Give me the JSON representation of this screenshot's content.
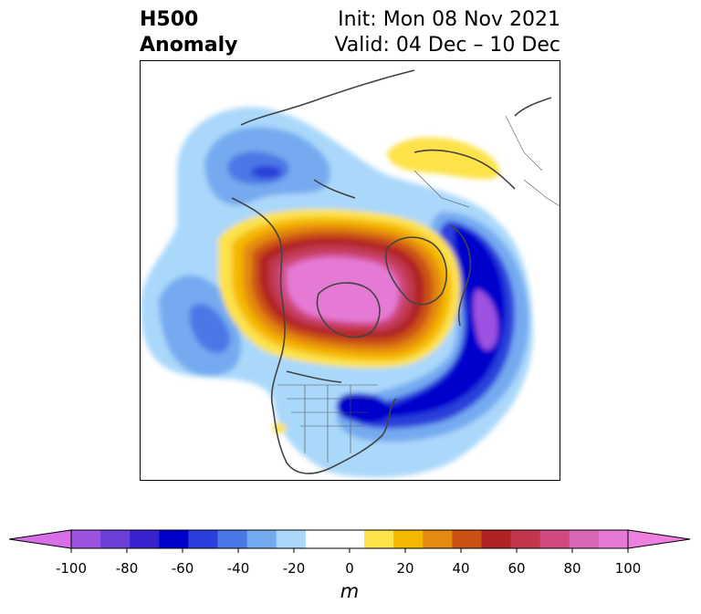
{
  "title": {
    "left_line1": "H500",
    "left_line2": "Anomaly",
    "right_line1": "Init: Mon 08 Nov 2021",
    "right_line2": "Valid: 04 Dec – 10 Dec"
  },
  "colorbar": {
    "unit": "m",
    "ticks": [
      "-100",
      "-80",
      "-60",
      "-40",
      "-20",
      "0",
      "20",
      "40",
      "60",
      "80",
      "100"
    ],
    "colors": [
      "#d86fe8",
      "#9e52e0",
      "#6b3fd8",
      "#3a22cf",
      "#0000cc",
      "#2a3fdb",
      "#4b78e6",
      "#74aaf0",
      "#aad8fa",
      "#ffffff",
      "#ffffff",
      "#fde24a",
      "#f5b800",
      "#e48a10",
      "#cc5214",
      "#b02222",
      "#c0374e",
      "#d04a80",
      "#d865b5",
      "#e57ad5",
      "#f080e0"
    ]
  },
  "map": {
    "type": "h500-anomaly-map",
    "region": "North America / North Pole"
  }
}
